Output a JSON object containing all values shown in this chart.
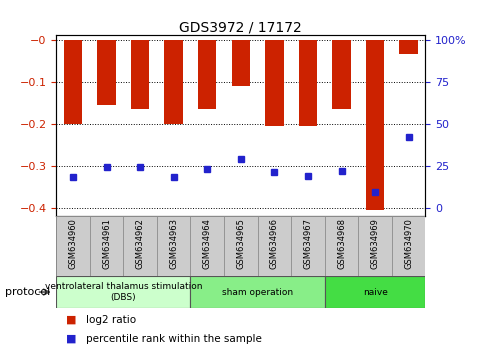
{
  "title": "GDS3972 / 17172",
  "samples": [
    "GSM634960",
    "GSM634961",
    "GSM634962",
    "GSM634963",
    "GSM634964",
    "GSM634965",
    "GSM634966",
    "GSM634967",
    "GSM634968",
    "GSM634969",
    "GSM634970"
  ],
  "log2_ratio": [
    -0.2,
    -0.155,
    -0.165,
    -0.2,
    -0.165,
    -0.11,
    -0.205,
    -0.205,
    -0.165,
    -0.405,
    -0.035
  ],
  "percentile_rank": [
    18,
    24,
    24,
    18,
    23,
    29,
    21,
    19,
    22,
    9,
    42
  ],
  "ylim_left": [
    -0.42,
    0.01
  ],
  "ylim_right": [
    -0.42,
    0.01
  ],
  "yticks_left": [
    0.0,
    -0.1,
    -0.2,
    -0.3,
    -0.4
  ],
  "ytick_labels_left": [
    "−0",
    "−0.1",
    "−0.2",
    "−0.3",
    "−0.4"
  ],
  "yticks_right": [
    0,
    25,
    50,
    75,
    100
  ],
  "bar_color": "#cc2200",
  "dot_color": "#2222cc",
  "bar_width": 0.55,
  "groups": [
    {
      "label": "ventrolateral thalamus stimulation\n(DBS)",
      "start": 0,
      "end": 3,
      "color": "#ccffcc"
    },
    {
      "label": "sham operation",
      "start": 4,
      "end": 7,
      "color": "#88ee88"
    },
    {
      "label": "naive",
      "start": 8,
      "end": 10,
      "color": "#44dd44"
    }
  ],
  "legend_red": "log2 ratio",
  "legend_blue": "percentile rank within the sample",
  "protocol_label": "protocol",
  "bg_color": "#ffffff",
  "plot_bg": "#ffffff",
  "tick_color_left": "#cc2200",
  "tick_color_right": "#2222cc",
  "grid_color": "#000000",
  "label_area_color": "#cccccc"
}
